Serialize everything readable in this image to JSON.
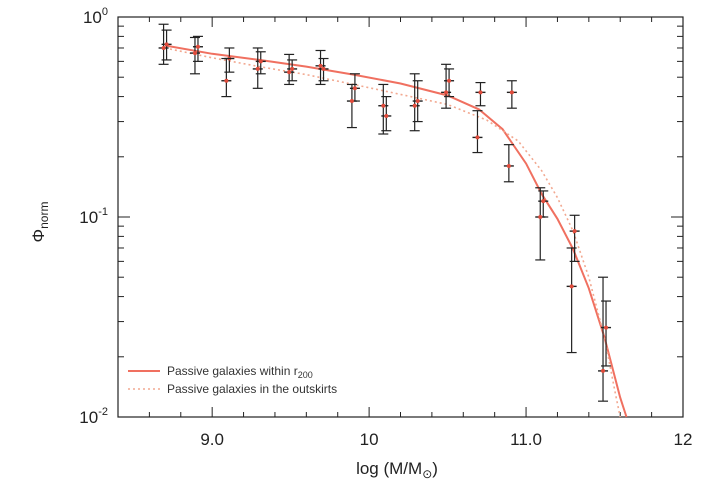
{
  "chart_data": {
    "type": "scatter",
    "xlabel": "log (M/M",
    "xlabel_sub": "⊙",
    "xlabel_close": ")",
    "ylabel": "Φ",
    "ylabel_sub": "norm",
    "xlim": [
      8.4,
      12
    ],
    "ylim": [
      0.01,
      1
    ],
    "yscale": "log",
    "xticks": [
      {
        "value": 9.0,
        "label": "9.0"
      },
      {
        "value": 10,
        "label": "10"
      },
      {
        "value": 11.0,
        "label": "11.0"
      },
      {
        "value": 12,
        "label": "12"
      }
    ],
    "yticks": [
      {
        "value": 1,
        "base": "10",
        "exp": "0"
      },
      {
        "value": 0.1,
        "base": "10",
        "exp": "-1"
      },
      {
        "value": 0.01,
        "base": "10",
        "exp": "-2"
      }
    ],
    "series": [
      {
        "name": "Passive galaxies within r",
        "name_sub": "200",
        "line_style": "solid",
        "color": "#f07060",
        "points": [
          {
            "x": 8.7,
            "y": 0.73,
            "lo": 0.61,
            "hi": 0.86
          },
          {
            "x": 8.9,
            "y": 0.71,
            "lo": 0.6,
            "hi": 0.8
          },
          {
            "x": 9.1,
            "y": 0.62,
            "lo": 0.53,
            "hi": 0.7
          },
          {
            "x": 9.3,
            "y": 0.6,
            "lo": 0.52,
            "hi": 0.67
          },
          {
            "x": 9.5,
            "y": 0.55,
            "lo": 0.48,
            "hi": 0.61
          },
          {
            "x": 9.7,
            "y": 0.55,
            "lo": 0.48,
            "hi": 0.62
          },
          {
            "x": 9.9,
            "y": 0.44,
            "lo": 0.38,
            "hi": 0.52
          },
          {
            "x": 10.1,
            "y": 0.32,
            "lo": 0.27,
            "hi": 0.4
          },
          {
            "x": 10.3,
            "y": 0.38,
            "lo": 0.3,
            "hi": 0.48
          },
          {
            "x": 10.5,
            "y": 0.48,
            "lo": 0.4,
            "hi": 0.55
          },
          {
            "x": 10.7,
            "y": 0.42,
            "lo": 0.36,
            "hi": 0.47
          },
          {
            "x": 10.9,
            "y": 0.42,
            "lo": 0.35,
            "hi": 0.48
          },
          {
            "x": 11.1,
            "y": 0.12,
            "lo": 0.1,
            "hi": 0.135
          },
          {
            "x": 11.3,
            "y": 0.085,
            "lo": 0.06,
            "hi": 0.102
          },
          {
            "x": 11.5,
            "y": 0.028,
            "lo": 0.018,
            "hi": 0.038
          }
        ],
        "curve": [
          {
            "x": 8.7,
            "y": 0.72
          },
          {
            "x": 9.0,
            "y": 0.655
          },
          {
            "x": 9.3,
            "y": 0.61
          },
          {
            "x": 9.6,
            "y": 0.565
          },
          {
            "x": 9.9,
            "y": 0.515
          },
          {
            "x": 10.2,
            "y": 0.465
          },
          {
            "x": 10.5,
            "y": 0.405
          },
          {
            "x": 10.7,
            "y": 0.345
          },
          {
            "x": 10.85,
            "y": 0.275
          },
          {
            "x": 11.0,
            "y": 0.185
          },
          {
            "x": 11.1,
            "y": 0.13
          },
          {
            "x": 11.2,
            "y": 0.098
          },
          {
            "x": 11.3,
            "y": 0.069
          },
          {
            "x": 11.4,
            "y": 0.044
          },
          {
            "x": 11.5,
            "y": 0.025
          },
          {
            "x": 11.6,
            "y": 0.0125
          },
          {
            "x": 11.64,
            "y": 0.01
          }
        ]
      },
      {
        "name": "Passive galaxies in the outskirts",
        "line_style": "dotted",
        "color": "#f2a890",
        "points": [
          {
            "x": 8.7,
            "y": 0.7,
            "lo": 0.58,
            "hi": 0.92
          },
          {
            "x": 8.9,
            "y": 0.66,
            "lo": 0.52,
            "hi": 0.79
          },
          {
            "x": 9.1,
            "y": 0.48,
            "lo": 0.4,
            "hi": 0.62
          },
          {
            "x": 9.3,
            "y": 0.55,
            "lo": 0.44,
            "hi": 0.7
          },
          {
            "x": 9.5,
            "y": 0.53,
            "lo": 0.46,
            "hi": 0.65
          },
          {
            "x": 9.7,
            "y": 0.57,
            "lo": 0.46,
            "hi": 0.68
          },
          {
            "x": 9.9,
            "y": 0.38,
            "lo": 0.28,
            "hi": 0.46
          },
          {
            "x": 10.1,
            "y": 0.36,
            "lo": 0.26,
            "hi": 0.46
          },
          {
            "x": 10.3,
            "y": 0.36,
            "lo": 0.27,
            "hi": 0.52
          },
          {
            "x": 10.5,
            "y": 0.42,
            "lo": 0.35,
            "hi": 0.58
          },
          {
            "x": 10.7,
            "y": 0.25,
            "lo": 0.21,
            "hi": 0.34
          },
          {
            "x": 10.9,
            "y": 0.18,
            "lo": 0.15,
            "hi": 0.23
          },
          {
            "x": 11.1,
            "y": 0.1,
            "lo": 0.061,
            "hi": 0.14
          },
          {
            "x": 11.3,
            "y": 0.045,
            "lo": 0.021,
            "hi": 0.07
          },
          {
            "x": 11.5,
            "y": 0.017,
            "lo": 0.012,
            "hi": 0.05
          }
        ],
        "curve": [
          {
            "x": 8.7,
            "y": 0.7
          },
          {
            "x": 9.0,
            "y": 0.625
          },
          {
            "x": 9.3,
            "y": 0.565
          },
          {
            "x": 9.6,
            "y": 0.515
          },
          {
            "x": 9.9,
            "y": 0.46
          },
          {
            "x": 10.2,
            "y": 0.41
          },
          {
            "x": 10.5,
            "y": 0.365
          },
          {
            "x": 10.75,
            "y": 0.305
          },
          {
            "x": 10.95,
            "y": 0.24
          },
          {
            "x": 11.1,
            "y": 0.17
          },
          {
            "x": 11.2,
            "y": 0.125
          },
          {
            "x": 11.3,
            "y": 0.085
          },
          {
            "x": 11.4,
            "y": 0.05
          },
          {
            "x": 11.5,
            "y": 0.025
          },
          {
            "x": 11.57,
            "y": 0.013
          },
          {
            "x": 11.6,
            "y": 0.01
          }
        ]
      }
    ],
    "legend_position": "bottom-left",
    "grid": false
  }
}
